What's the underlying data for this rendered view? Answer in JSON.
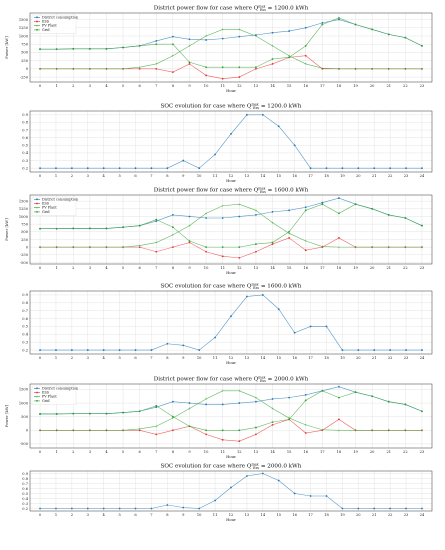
{
  "chart_data": [
    {
      "type": "line",
      "title": "District power flow for case where Q_Ess^max = 1200.0 kWh",
      "xlabel": "Hour",
      "ylabel": "Power [kW]",
      "x": [
        0,
        1,
        2,
        3,
        4,
        5,
        6,
        7,
        8,
        9,
        10,
        11,
        12,
        13,
        14,
        15,
        16,
        17,
        18,
        19,
        20,
        21,
        22,
        23
      ],
      "xticks": [
        0,
        1,
        2,
        3,
        4,
        5,
        6,
        7,
        8,
        9,
        10,
        11,
        12,
        13,
        14,
        15,
        16,
        17,
        18,
        19,
        20,
        21,
        22,
        23
      ],
      "ylim": [
        -400,
        1700
      ],
      "yticks": [
        -250,
        0,
        250,
        500,
        750,
        1000,
        1250,
        1500
      ],
      "legend": "top-left",
      "series": [
        {
          "name": "District consumption",
          "color": "#1f77b4",
          "values": [
            600,
            600,
            610,
            610,
            610,
            650,
            700,
            850,
            980,
            900,
            880,
            920,
            980,
            1030,
            1100,
            1150,
            1250,
            1400,
            1500,
            1350,
            1200,
            1050,
            950,
            700
          ]
        },
        {
          "name": "ESS",
          "color": "#e8312f",
          "values": [
            0,
            0,
            0,
            0,
            0,
            0,
            0,
            0,
            -100,
            150,
            -200,
            -300,
            -250,
            0,
            150,
            350,
            400,
            0,
            0,
            0,
            0,
            0,
            0,
            0
          ]
        },
        {
          "name": "PV Plant",
          "color": "#2ca02c",
          "values": [
            0,
            0,
            0,
            0,
            0,
            0,
            50,
            150,
            400,
            700,
            1000,
            1200,
            1200,
            1000,
            700,
            400,
            150,
            20,
            0,
            0,
            0,
            0,
            0,
            0
          ]
        },
        {
          "name": "Grid",
          "color": "#2ca02c",
          "values": [
            600,
            600,
            610,
            610,
            610,
            650,
            700,
            750,
            750,
            200,
            50,
            50,
            50,
            50,
            300,
            350,
            700,
            1350,
            1550,
            1350,
            1200,
            1050,
            950,
            700
          ]
        }
      ]
    },
    {
      "type": "line",
      "title": "SOC evolution for case where Q_Ess^max = 1200.0 kWh",
      "xlabel": "Hour",
      "ylabel": "",
      "x": [
        0,
        1,
        2,
        3,
        4,
        5,
        6,
        7,
        8,
        9,
        10,
        11,
        12,
        13,
        14,
        15,
        16,
        17,
        18,
        19,
        20,
        21,
        22,
        23,
        24
      ],
      "xticks": [
        0,
        1,
        2,
        3,
        4,
        5,
        6,
        7,
        8,
        9,
        10,
        11,
        12,
        13,
        14,
        15,
        16,
        17,
        18,
        19,
        20,
        21,
        22,
        23,
        24
      ],
      "ylim": [
        0.15,
        0.95
      ],
      "yticks": [
        0.2,
        0.3,
        0.4,
        0.5,
        0.6,
        0.7,
        0.8,
        0.9
      ],
      "series": [
        {
          "name": "",
          "color": "#1f77b4",
          "values": [
            0.2,
            0.2,
            0.2,
            0.2,
            0.2,
            0.2,
            0.2,
            0.2,
            0.2,
            0.3,
            0.2,
            0.38,
            0.65,
            0.9,
            0.9,
            0.75,
            0.5,
            0.2,
            0.2,
            0.2,
            0.2,
            0.2,
            0.2,
            0.2,
            0.2
          ]
        }
      ]
    },
    {
      "type": "line",
      "title": "District power flow for case where Q_Ess^max = 1600.0 kWh",
      "xlabel": "Hour",
      "ylabel": "Power [kW]",
      "x": [
        0,
        1,
        2,
        3,
        4,
        5,
        6,
        7,
        8,
        9,
        10,
        11,
        12,
        13,
        14,
        15,
        16,
        17,
        18,
        19,
        20,
        21,
        22,
        23
      ],
      "xticks": [
        0,
        1,
        2,
        3,
        4,
        5,
        6,
        7,
        8,
        9,
        10,
        11,
        12,
        13,
        14,
        15,
        16,
        17,
        18,
        19,
        20,
        21,
        22,
        23
      ],
      "ylim": [
        -550,
        1700
      ],
      "yticks": [
        -500,
        -250,
        0,
        250,
        500,
        750,
        1000,
        1250,
        1500
      ],
      "legend": "top-left",
      "series": [
        {
          "name": "District consumption",
          "color": "#1f77b4",
          "values": [
            600,
            600,
            610,
            610,
            610,
            650,
            700,
            850,
            1050,
            1000,
            950,
            950,
            1000,
            1050,
            1150,
            1200,
            1300,
            1450,
            1600,
            1400,
            1250,
            1050,
            950,
            700
          ]
        },
        {
          "name": "ESS",
          "color": "#e8312f",
          "values": [
            0,
            0,
            0,
            0,
            0,
            0,
            0,
            -150,
            0,
            150,
            -150,
            -300,
            -350,
            -150,
            100,
            300,
            -100,
            0,
            300,
            0,
            0,
            0,
            0,
            0
          ]
        },
        {
          "name": "PV Plant",
          "color": "#2ca02c",
          "values": [
            0,
            0,
            0,
            0,
            0,
            0,
            50,
            150,
            400,
            700,
            1100,
            1350,
            1400,
            1200,
            800,
            450,
            200,
            20,
            0,
            0,
            0,
            0,
            0,
            0
          ]
        },
        {
          "name": "Grid",
          "color": "#2ca02c",
          "values": [
            600,
            600,
            610,
            610,
            610,
            650,
            700,
            900,
            650,
            200,
            0,
            0,
            0,
            100,
            150,
            500,
            1200,
            1400,
            1100,
            1400,
            1250,
            1050,
            950,
            700
          ]
        }
      ]
    },
    {
      "type": "line",
      "title": "SOC evolution for case where Q_Ess^max = 1600.0 kWh",
      "xlabel": "Hour",
      "ylabel": "",
      "x": [
        0,
        1,
        2,
        3,
        4,
        5,
        6,
        7,
        8,
        9,
        10,
        11,
        12,
        13,
        14,
        15,
        16,
        17,
        18,
        19,
        20,
        21,
        22,
        23,
        24
      ],
      "xticks": [
        0,
        1,
        2,
        3,
        4,
        5,
        6,
        7,
        8,
        9,
        10,
        11,
        12,
        13,
        14,
        15,
        16,
        17,
        18,
        19,
        20,
        21,
        22,
        23,
        24
      ],
      "ylim": [
        0.15,
        0.95
      ],
      "yticks": [
        0.2,
        0.3,
        0.4,
        0.5,
        0.6,
        0.7,
        0.8,
        0.9
      ],
      "series": [
        {
          "name": "",
          "color": "#1f77b4",
          "values": [
            0.2,
            0.2,
            0.2,
            0.2,
            0.2,
            0.2,
            0.2,
            0.2,
            0.28,
            0.26,
            0.2,
            0.36,
            0.63,
            0.88,
            0.9,
            0.72,
            0.42,
            0.5,
            0.5,
            0.2,
            0.2,
            0.2,
            0.2,
            0.2,
            0.2
          ]
        }
      ]
    },
    {
      "type": "line",
      "title": "District power flow for case where Q_Ess^max = 2000.0 kWh",
      "xlabel": "Hour",
      "ylabel": "Power [kW]",
      "x": [
        0,
        1,
        2,
        3,
        4,
        5,
        6,
        7,
        8,
        9,
        10,
        11,
        12,
        13,
        14,
        15,
        16,
        17,
        18,
        19,
        20,
        21,
        22,
        23
      ],
      "xticks": [
        0,
        1,
        2,
        3,
        4,
        5,
        6,
        7,
        8,
        9,
        10,
        11,
        12,
        13,
        14,
        15,
        16,
        17,
        18,
        19,
        20,
        21,
        22,
        23
      ],
      "ylim": [
        -650,
        1700
      ],
      "yticks": [
        -500,
        0,
        500,
        1000,
        1500
      ],
      "legend": "top-left",
      "series": [
        {
          "name": "District consumption",
          "color": "#1f77b4",
          "values": [
            600,
            600,
            610,
            610,
            610,
            650,
            700,
            850,
            1050,
            1000,
            950,
            950,
            1000,
            1050,
            1150,
            1200,
            1300,
            1450,
            1600,
            1400,
            1250,
            1050,
            950,
            700
          ]
        },
        {
          "name": "ESS",
          "color": "#e8312f",
          "values": [
            0,
            0,
            0,
            0,
            0,
            0,
            0,
            -150,
            0,
            150,
            -150,
            -350,
            -400,
            -150,
            200,
            400,
            -100,
            0,
            400,
            0,
            0,
            0,
            0,
            0
          ]
        },
        {
          "name": "PV Plant",
          "color": "#2ca02c",
          "values": [
            0,
            0,
            0,
            0,
            0,
            0,
            50,
            150,
            450,
            800,
            1150,
            1450,
            1450,
            1200,
            800,
            450,
            200,
            20,
            0,
            0,
            0,
            0,
            0,
            0
          ]
        },
        {
          "name": "Grid",
          "color": "#2ca02c",
          "values": [
            600,
            600,
            610,
            610,
            610,
            650,
            700,
            900,
            500,
            150,
            0,
            0,
            0,
            100,
            300,
            400,
            1100,
            1450,
            1200,
            1400,
            1250,
            1050,
            950,
            700
          ]
        }
      ]
    },
    {
      "type": "line",
      "title": "SOC evolution for case where Q_Ess^max = 2000.0 kWh",
      "xlabel": "Hour",
      "ylabel": "",
      "x": [
        0,
        1,
        2,
        3,
        4,
        5,
        6,
        7,
        8,
        9,
        10,
        11,
        12,
        13,
        14,
        15,
        16,
        17,
        18,
        19,
        20,
        21,
        22,
        23,
        24
      ],
      "xticks": [
        0,
        1,
        2,
        3,
        4,
        5,
        6,
        7,
        8,
        9,
        10,
        11,
        12,
        13,
        14,
        15,
        16,
        17,
        18,
        19,
        20,
        21,
        22,
        23,
        24
      ],
      "ylim": [
        0.15,
        0.95
      ],
      "yticks": [
        0.2,
        0.3,
        0.4,
        0.5,
        0.6,
        0.7,
        0.8,
        0.9
      ],
      "series": [
        {
          "name": "",
          "color": "#1f77b4",
          "values": [
            0.2,
            0.2,
            0.2,
            0.2,
            0.2,
            0.2,
            0.2,
            0.2,
            0.27,
            0.22,
            0.2,
            0.36,
            0.62,
            0.85,
            0.9,
            0.76,
            0.5,
            0.45,
            0.45,
            0.2,
            0.2,
            0.2,
            0.2,
            0.2,
            0.2
          ]
        }
      ]
    }
  ]
}
